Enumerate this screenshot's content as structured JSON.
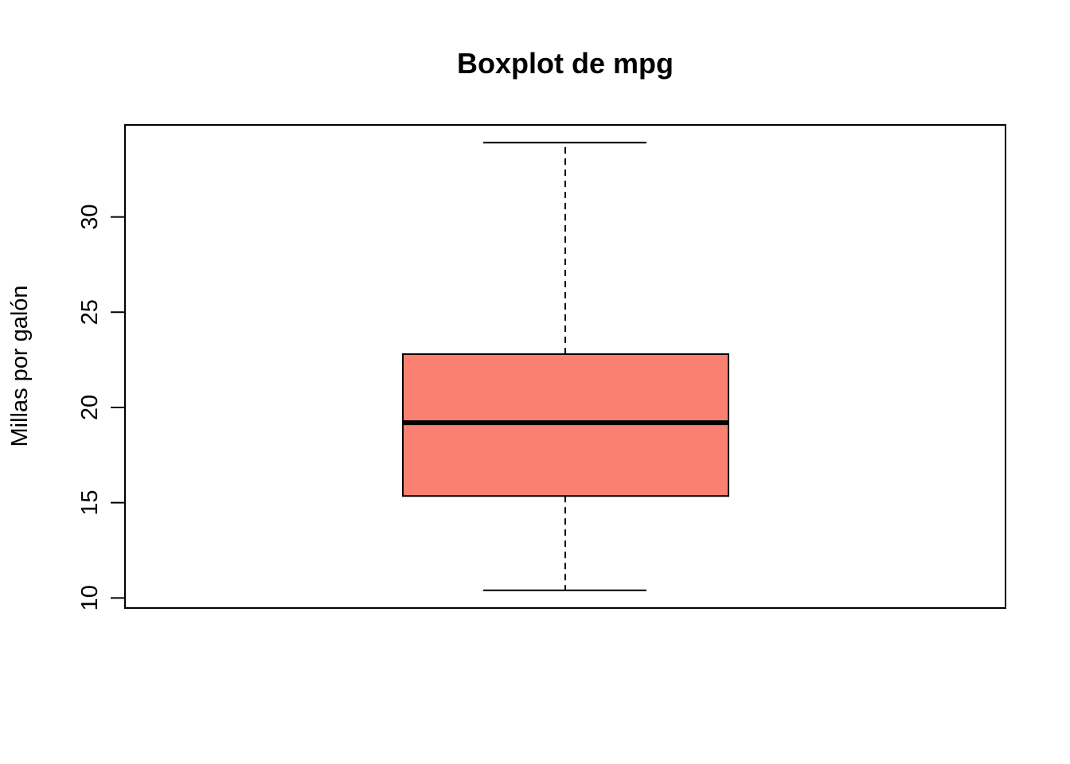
{
  "chart_data": {
    "type": "boxplot",
    "title": "Boxplot de mpg",
    "xlabel": "",
    "ylabel": "Millas por galón",
    "ylim": [
      9.47,
      34.83
    ],
    "yticks": [
      10,
      15,
      20,
      25,
      30
    ],
    "ytick_labels": [
      "10",
      "15",
      "20",
      "25",
      "30"
    ],
    "box": {
      "min": 10.4,
      "q1": 15.35,
      "median": 19.2,
      "q3": 22.8,
      "max": 33.9
    },
    "box_fill": "#FA8072",
    "line_color": "#000000",
    "grid": false,
    "legend": "none"
  }
}
